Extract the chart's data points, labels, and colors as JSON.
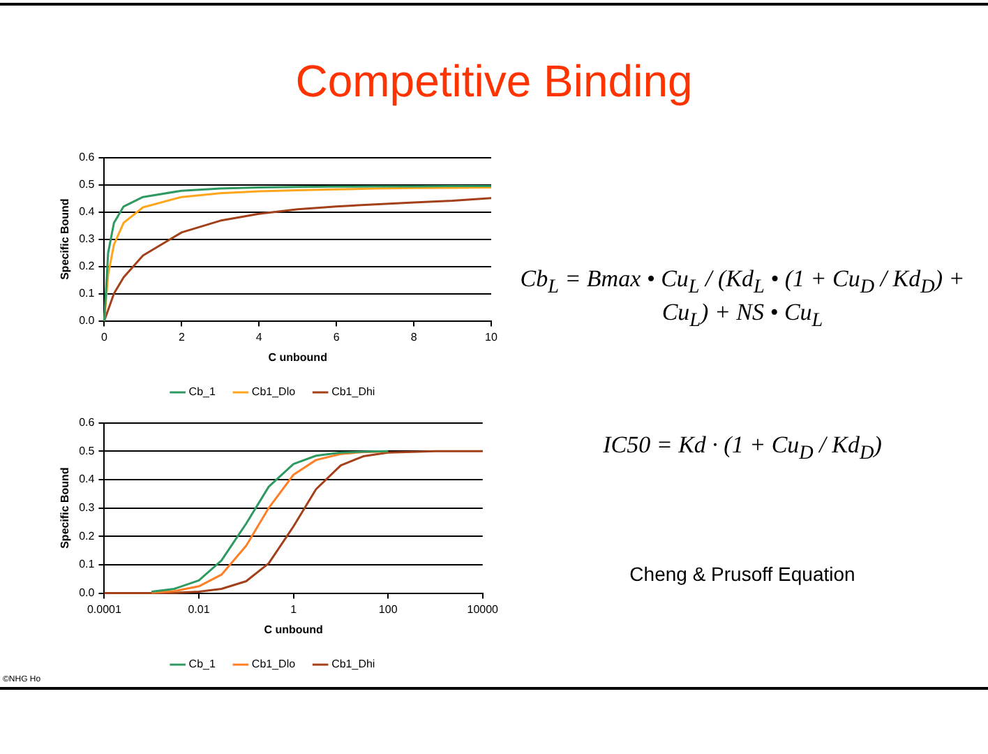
{
  "chart_data": [
    {
      "type": "line",
      "title": "Competitive Binding",
      "xlabel": "C unbound",
      "ylabel": "Specific Bound",
      "xlim": [
        0,
        10
      ],
      "xticks": [
        0,
        2,
        4,
        6,
        8,
        10
      ],
      "ylim": [
        0,
        0.6
      ],
      "yticks": [
        {
          "value": 0,
          "label": "0.0"
        },
        {
          "value": 0.1,
          "label": "0.1"
        },
        {
          "value": 0.2,
          "label": "0.2"
        },
        {
          "value": 0.3,
          "label": "0.3"
        },
        {
          "value": 0.4,
          "label": "0.4"
        },
        {
          "value": 0.5,
          "label": "0.5"
        },
        {
          "value": 0.6,
          "label": "0.6"
        }
      ],
      "grid": "y",
      "legend": "bottom",
      "marker": "none",
      "line_style": "solid",
      "x": [
        0,
        0.1,
        0.25,
        0.5,
        1,
        2,
        3,
        4,
        5,
        6,
        7,
        8,
        9,
        10
      ],
      "series": [
        {
          "name": "Cb_1",
          "color": "#2e9a62",
          "values": [
            0,
            0.25,
            0.36,
            0.42,
            0.455,
            0.478,
            0.486,
            0.49,
            0.492,
            0.493,
            0.494,
            0.494,
            0.495,
            0.495
          ]
        },
        {
          "name": "Cb1_Dlo",
          "color": "#ffa51c",
          "values": [
            0,
            0.17,
            0.28,
            0.36,
            0.417,
            0.455,
            0.469,
            0.476,
            0.48,
            0.483,
            0.486,
            0.488,
            0.489,
            0.49
          ]
        },
        {
          "name": "Cb1_Dhi",
          "color": "#a3401a",
          "values": [
            0,
            0.04,
            0.1,
            0.16,
            0.24,
            0.325,
            0.368,
            0.393,
            0.41,
            0.42,
            0.428,
            0.435,
            0.441,
            0.451
          ]
        }
      ]
    },
    {
      "type": "line",
      "xlabel": "C unbound",
      "ylabel": "Specific Bound",
      "log": "x",
      "xlim": [
        0.0001,
        10000
      ],
      "xticks": [
        0.0001,
        0.01,
        1,
        100,
        10000
      ],
      "ylim": [
        0,
        0.6
      ],
      "yticks": [
        {
          "value": 0,
          "label": "0.0"
        },
        {
          "value": 0.1,
          "label": "0.1"
        },
        {
          "value": 0.2,
          "label": "0.2"
        },
        {
          "value": 0.3,
          "label": "0.3"
        },
        {
          "value": 0.4,
          "label": "0.4"
        },
        {
          "value": 0.5,
          "label": "0.5"
        },
        {
          "value": 0.6,
          "label": "0.6"
        }
      ],
      "grid": "y",
      "legend": "bottom",
      "marker": "none",
      "line_style": "solid",
      "annotations": [
        "©NHG Ho"
      ],
      "x": [
        0.0001,
        0.001,
        0.003,
        0.01,
        0.03,
        0.1,
        0.3,
        1,
        3,
        10,
        30,
        100,
        1000,
        10000
      ],
      "series": [
        {
          "name": "Cb_1",
          "color": "#2e9a62",
          "values": [
            null,
            0.005,
            0.015,
            0.045,
            0.115,
            0.245,
            0.375,
            0.455,
            0.484,
            0.495,
            0.498,
            0.5,
            null,
            null
          ]
        },
        {
          "name": "Cb1_Dlo",
          "color": "#ff7f27",
          "values": [
            null,
            0.002,
            0.007,
            0.024,
            0.065,
            0.167,
            0.3,
            0.417,
            0.469,
            0.49,
            0.497,
            0.499,
            null,
            null
          ]
        },
        {
          "name": "Cb1_Dhi",
          "color": "#a3401a",
          "values": [
            0,
            0,
            0.001,
            0.005,
            0.015,
            0.042,
            0.105,
            0.235,
            0.366,
            0.45,
            0.482,
            0.495,
            0.5,
            0.5
          ]
        }
      ]
    },
    {
      "type": "other",
      "annotations": [
        "Cb$_{L}$ = Bmax • Cu$_{L}$ / (Kd$_{L}$ • (1 + Cu$_{D}$ / Kd$_{D}$) + Cu$_{L}$) + NS • Cu$_{L}$",
        "IC50 = Kd · (1 + Cu$_{D}$ / Kd$_{D}$)",
        "Cheng & Prusoff Equation"
      ]
    }
  ]
}
